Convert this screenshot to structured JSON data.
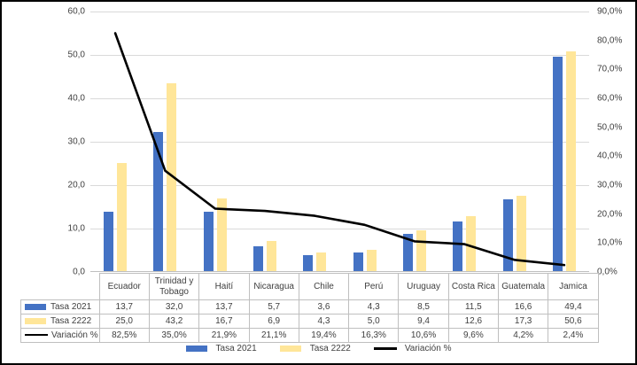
{
  "chart_data": {
    "type": "combo-bar-line",
    "title": "",
    "categories": [
      "Ecuador",
      "Trinidad y Tobago",
      "Haití",
      "Nicaragua",
      "Chile",
      "Perú",
      "Uruguay",
      "Costa Rica",
      "Guatemala",
      "Jamica"
    ],
    "series": [
      {
        "name": "Tasa 2021",
        "type": "bar",
        "axis": "left",
        "color": "#4472C4",
        "values": [
          13.7,
          32.0,
          13.7,
          5.7,
          3.6,
          4.3,
          8.5,
          11.5,
          16.6,
          49.4
        ],
        "labels": [
          "13,7",
          "32,0",
          "13,7",
          "5,7",
          "3,6",
          "4,3",
          "8,5",
          "11,5",
          "16,6",
          "49,4"
        ]
      },
      {
        "name": "Tasa 2222",
        "type": "bar",
        "axis": "left",
        "color": "#FFE699",
        "values": [
          25.0,
          43.2,
          16.7,
          6.9,
          4.3,
          5.0,
          9.4,
          12.6,
          17.3,
          50.6
        ],
        "labels": [
          "25,0",
          "43,2",
          "16,7",
          "6,9",
          "4,3",
          "5,0",
          "9,4",
          "12,6",
          "17,3",
          "50,6"
        ]
      },
      {
        "name": "Variación %",
        "type": "line",
        "axis": "right",
        "color": "#000000",
        "values": [
          82.5,
          35.0,
          21.9,
          21.1,
          19.4,
          16.3,
          10.6,
          9.6,
          4.2,
          2.4
        ],
        "labels": [
          "82,5%",
          "35,0%",
          "21,9%",
          "21,1%",
          "19,4%",
          "16,3%",
          "10,6%",
          "9,6%",
          "4,2%",
          "2,4%"
        ]
      }
    ],
    "left_axis": {
      "min": 0,
      "max": 60,
      "step": 10,
      "tick_labels": [
        "0,0",
        "10,0",
        "20,0",
        "30,0",
        "40,0",
        "50,0",
        "60,0"
      ]
    },
    "right_axis": {
      "min": 0,
      "max": 90,
      "step": 10,
      "tick_labels": [
        "0,0%",
        "10,0%",
        "20,0%",
        "30,0%",
        "40,0%",
        "50,0%",
        "60,0%",
        "70,0%",
        "80,0%",
        "90,0%"
      ]
    },
    "grid": true,
    "legend_position": "bottom",
    "data_table_shown": true,
    "colors": {
      "gridline": "#d9d9d9",
      "table_border": "#bfbfbf",
      "text": "#404040",
      "frame_border": "#000000"
    }
  }
}
